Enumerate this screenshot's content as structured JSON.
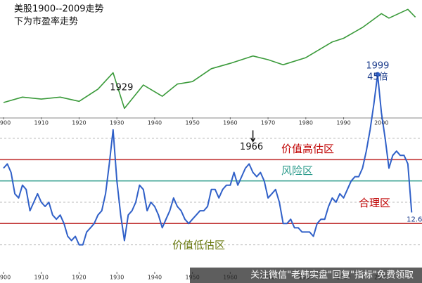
{
  "chart_data": [
    {
      "type": "line",
      "title": "美股1900--2009走势",
      "subtitle": "下为市盈率走势",
      "log": true,
      "x": [
        1900,
        1905,
        1910,
        1915,
        1920,
        1925,
        1929,
        1932,
        1937,
        1942,
        1946,
        1950,
        1955,
        1960,
        1966,
        1970,
        1974,
        1980,
        1987,
        1990,
        1995,
        2000,
        2002,
        2007,
        2009
      ],
      "series": [
        {
          "color": "#3a9a3a",
          "values": [
            70,
            95,
            85,
            95,
            75,
            150,
            380,
            50,
            190,
            100,
            200,
            230,
            480,
            650,
            990,
            800,
            600,
            900,
            2200,
            2700,
            5000,
            11000,
            8500,
            14000,
            9000
          ]
        }
      ],
      "xlim": [
        1900,
        2010
      ],
      "xticks": [
        1900,
        1910,
        1920,
        1930,
        1940,
        1950,
        1960,
        1970,
        1980,
        1990,
        2000
      ],
      "ylim": [
        40,
        16000
      ]
    },
    {
      "type": "line",
      "x": [
        1900,
        1901,
        1902,
        1903,
        1904,
        1905,
        1906,
        1907,
        1908,
        1909,
        1910,
        1911,
        1912,
        1913,
        1914,
        1915,
        1916,
        1917,
        1918,
        1919,
        1920,
        1921,
        1922,
        1923,
        1924,
        1925,
        1926,
        1927,
        1928,
        1929,
        1930,
        1931,
        1932,
        1933,
        1934,
        1935,
        1936,
        1937,
        1938,
        1939,
        1940,
        1941,
        1942,
        1943,
        1944,
        1945,
        1946,
        1947,
        1948,
        1949,
        1950,
        1951,
        1952,
        1953,
        1954,
        1955,
        1956,
        1957,
        1958,
        1959,
        1960,
        1961,
        1962,
        1963,
        1964,
        1965,
        1966,
        1967,
        1968,
        1969,
        1970,
        1971,
        1972,
        1973,
        1974,
        1975,
        1976,
        1977,
        1978,
        1979,
        1980,
        1981,
        1982,
        1983,
        1984,
        1985,
        1986,
        1987,
        1988,
        1989,
        1990,
        1991,
        1992,
        1993,
        1994,
        1995,
        1996,
        1997,
        1998,
        1999,
        2000,
        2001,
        2002,
        2003,
        2004,
        2005,
        2006,
        2007,
        2008
      ],
      "series": [
        {
          "color": "#3060c8",
          "values": [
            23,
            24,
            22,
            17,
            16,
            19,
            18,
            13,
            15,
            17,
            15,
            14,
            15,
            12,
            11,
            12,
            10,
            7,
            6,
            7,
            5,
            5,
            8,
            9,
            10,
            12,
            13,
            17,
            24,
            32,
            20,
            12,
            6,
            12,
            13,
            15,
            19,
            18,
            13,
            15,
            14,
            12,
            9,
            11,
            13,
            16,
            14,
            13,
            11,
            10,
            11,
            12,
            13,
            13,
            14,
            18,
            18,
            16,
            18,
            19,
            19,
            22,
            19,
            21,
            23,
            24,
            22,
            21,
            22,
            20,
            16,
            17,
            18,
            15,
            10,
            10,
            11,
            9,
            9,
            8,
            8,
            8,
            7,
            10,
            11,
            11,
            14,
            16,
            15,
            17,
            16,
            18,
            20,
            21,
            21,
            23,
            27,
            32,
            38,
            45,
            36,
            30,
            23,
            26,
            27,
            26,
            26,
            24,
            12.6
          ]
        }
      ],
      "xlim": [
        1900,
        2010
      ],
      "xticks": [
        1900,
        1910,
        1920,
        1930,
        1940,
        1950,
        1960,
        1970,
        1980,
        1990,
        2000
      ],
      "ylim": [
        -1,
        46
      ],
      "hlines": [
        {
          "value": 5,
          "color": "#bbbbbb"
        },
        {
          "value": 10,
          "color": "#c03030"
        },
        {
          "value": 15,
          "color": "#bbbbbb"
        },
        {
          "value": 20,
          "color": "#2a9a8a"
        },
        {
          "value": 25,
          "color": "#c03030"
        },
        {
          "value": 30,
          "color": "#bbbbbb"
        }
      ],
      "zones": [
        {
          "label": "价值高估区",
          "color": "#c00000"
        },
        {
          "label": "风险区",
          "color": "#2a9a8a"
        },
        {
          "label": "合理区",
          "color": "#c00000"
        },
        {
          "label": "价值低估区",
          "color": "#6a7a10"
        }
      ],
      "annotations": [
        {
          "label": "1929",
          "x": 1929,
          "y": 32
        },
        {
          "label": "1966",
          "x": 1966,
          "y": 22
        },
        {
          "label": "1999",
          "x": 1999,
          "y": 45
        },
        {
          "label": "45倍",
          "x": 1999,
          "y": 45
        },
        {
          "label": "12.6",
          "x": 2008,
          "y": 12.6
        }
      ],
      "watermark": "关注微信\"老韩实盘\"回复\"指标\"免费领取"
    }
  ]
}
